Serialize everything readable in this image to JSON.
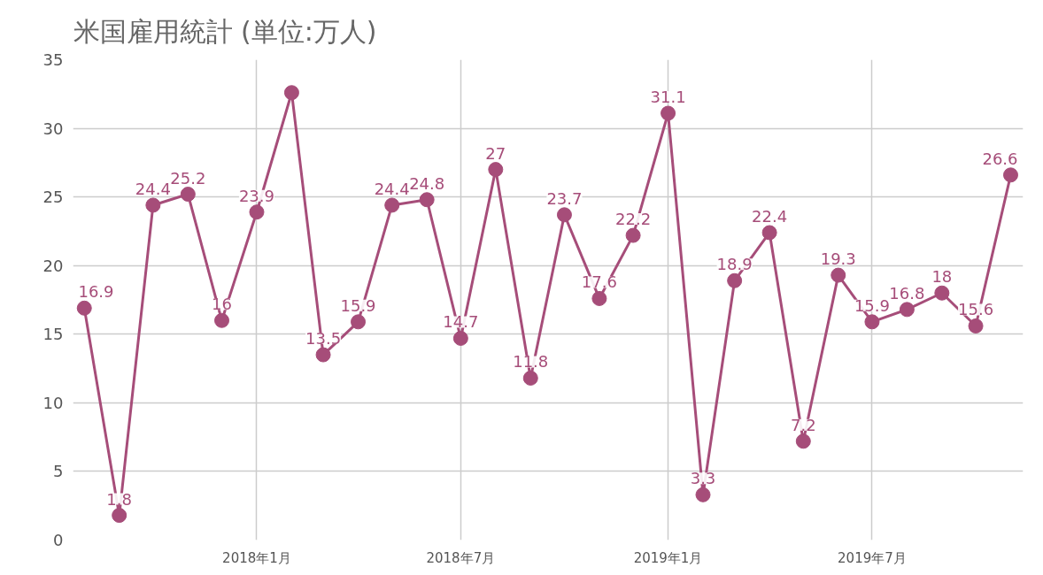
{
  "chart_data": {
    "type": "line",
    "title": "米国雇用統計 (単位:万人)",
    "x": [
      "2017-08",
      "2017-09",
      "2017-10",
      "2017-11",
      "2017-12",
      "2018-01",
      "2018-02",
      "2018-03",
      "2018-04",
      "2018-05",
      "2018-06",
      "2018-07",
      "2018-08",
      "2018-09",
      "2018-10",
      "2018-11",
      "2018-12",
      "2019-01",
      "2019-02",
      "2019-03",
      "2019-04",
      "2019-05",
      "2019-06",
      "2019-07",
      "2019-08",
      "2019-09",
      "2019-10",
      "2019-11"
    ],
    "series": [
      {
        "color": "#a64d79",
        "values": [
          16.9,
          1.8,
          24.4,
          25.2,
          16,
          23.9,
          32.6,
          13.5,
          15.9,
          24.4,
          24.8,
          14.7,
          27,
          11.8,
          23.7,
          17.6,
          22.2,
          31.1,
          3.3,
          18.9,
          22.4,
          7.2,
          19.3,
          15.9,
          16.8,
          18,
          15.6,
          26.6
        ],
        "value_labels": [
          "16.9",
          "1.8",
          "24.4",
          "25.2",
          "16",
          "23.9",
          null,
          "13.5",
          "15.9",
          "24.4",
          "24.8",
          "14.7",
          "27",
          "11.8",
          "23.7",
          "17.6",
          "22.2",
          "31.1",
          "3.3",
          "18.9",
          "22.4",
          "7.2",
          "19.3",
          "15.9",
          "16.8",
          "18",
          "15.6",
          "26.6"
        ]
      }
    ],
    "xlim": [
      "2017-07-22",
      "2019-11-12"
    ],
    "xticks": [
      {
        "value": "2018-01",
        "label": "2018年1月"
      },
      {
        "value": "2018-07",
        "label": "2018年7月"
      },
      {
        "value": "2019-01",
        "label": "2019年1月"
      },
      {
        "value": "2019-07",
        "label": "2019年7月"
      }
    ],
    "ylim": [
      0,
      35
    ],
    "yticks": [
      0,
      5,
      10,
      15,
      20,
      25,
      30,
      35
    ],
    "grid": true,
    "marker": "circle",
    "line_style": "solid"
  }
}
